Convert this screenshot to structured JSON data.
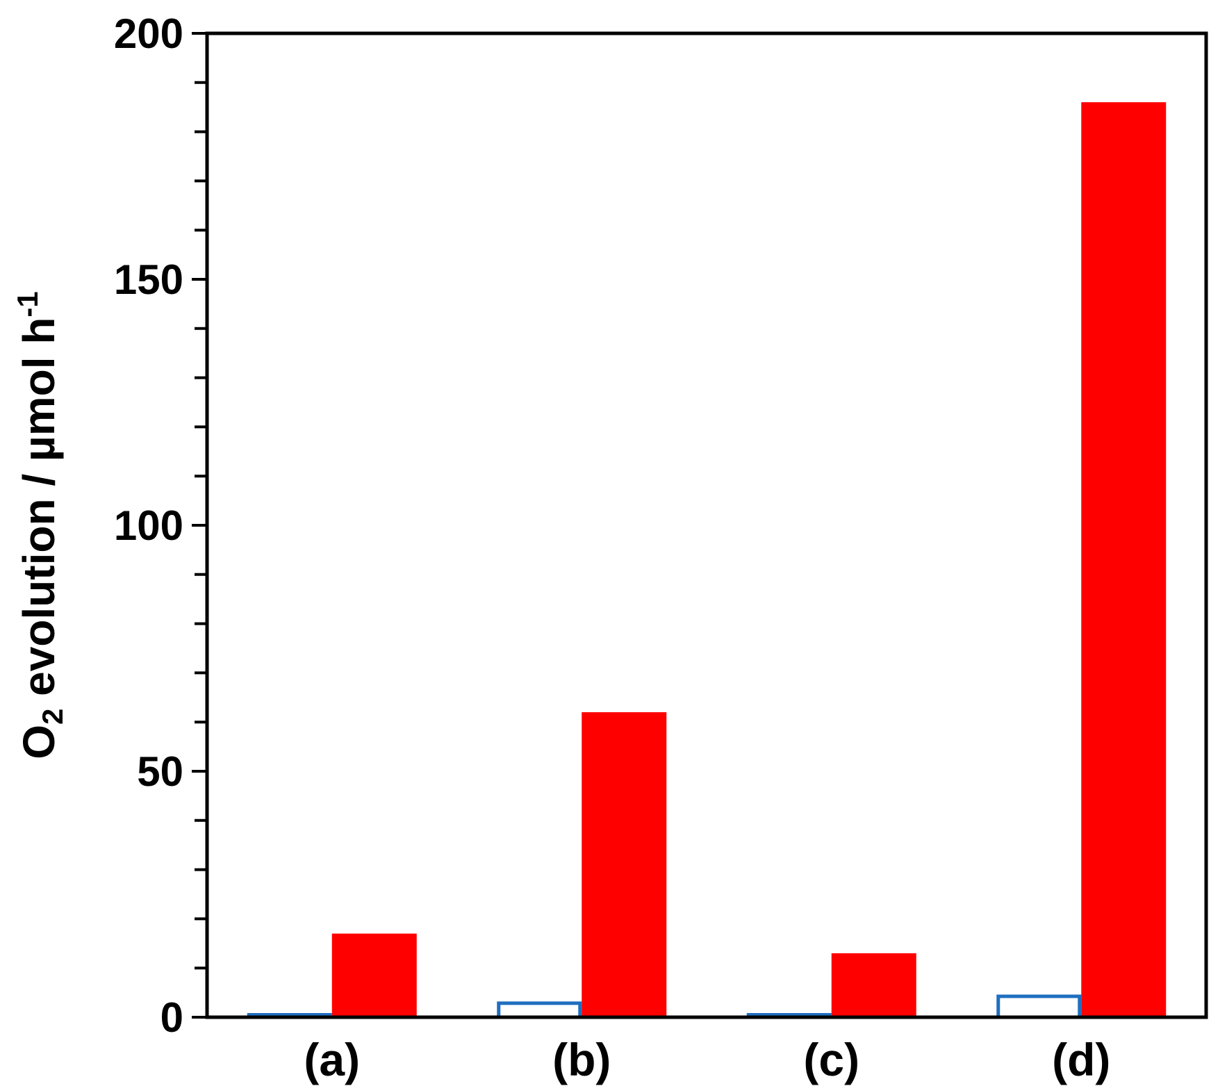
{
  "chart_data": {
    "type": "bar",
    "title": "",
    "xlabel": "",
    "ylabel": {
      "prefix": "O",
      "subscript": "2",
      "middle": " evolution  /  µmol h",
      "superscript": "-1"
    },
    "categories": [
      "(a)",
      "(b)",
      "(c)",
      "(d)"
    ],
    "ylim": [
      0,
      200
    ],
    "yticks": [
      0,
      50,
      100,
      150,
      200
    ],
    "minor_tick_step": 10,
    "grid": false,
    "legend": "none",
    "series": [
      {
        "style": "outline",
        "color": "#1f6fc0",
        "values": [
          0.6,
          3.2,
          0.8,
          4.6
        ]
      },
      {
        "style": "filled",
        "color": "#ff0000",
        "values": [
          17,
          62,
          13,
          186
        ]
      }
    ]
  }
}
